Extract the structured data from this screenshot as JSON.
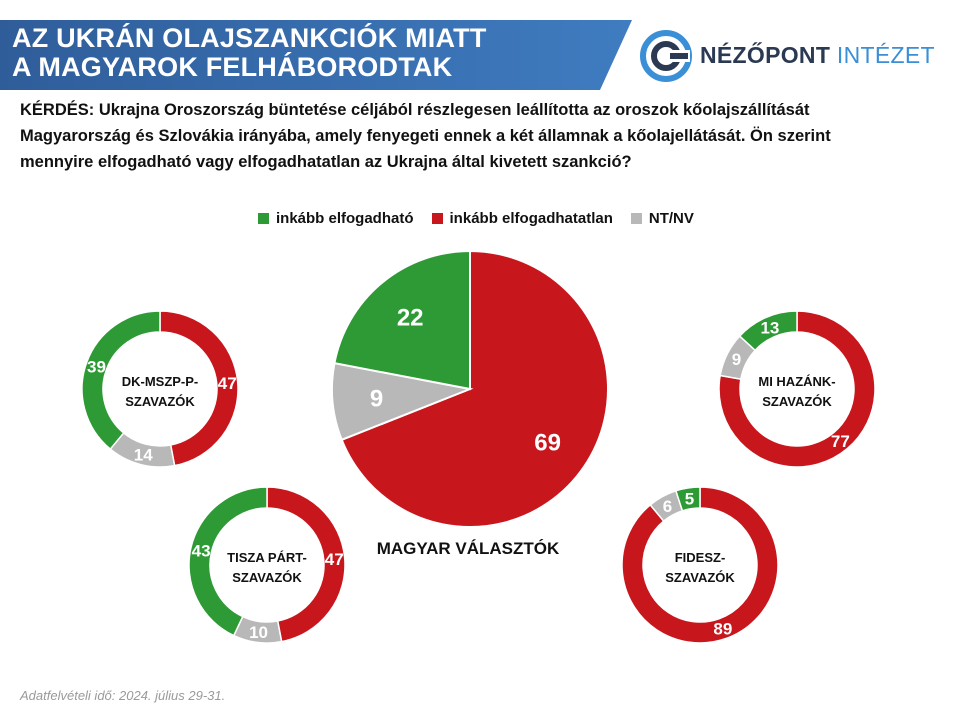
{
  "header": {
    "title_line1": "AZ UKRÁN OLAJSZANKCIÓK MIATT",
    "title_line2": "A MAGYAROK FELHÁBORODTAK",
    "banner_color": "#3a6fb0"
  },
  "logo": {
    "icon": "nezopont-logo-icon",
    "name_part1": "NÉZŐPONT",
    "name_part2": "INTÉZET"
  },
  "question": {
    "line1": "KÉRDÉS: Ukrajna Oroszország büntetése céljából részlegesen leállította az oroszok kőolajszállítását",
    "line2": "Magyarország és Szlovákia irányába, amely fenyegeti ennek a két államnak a kőolajellátását. Ön szerint",
    "line3": "mennyire elfogadható vagy elfogadhatatlan az Ukrajna által kivetett szankció?"
  },
  "legend": [
    {
      "label": "inkább elfogadható",
      "color": "#2e9a35"
    },
    {
      "label": "inkább elfogadhatatlan",
      "color": "#c8161d"
    },
    {
      "label": "NT/NV",
      "color": "#b8b8b8"
    }
  ],
  "chart_data": [
    {
      "type": "pie",
      "title": "MAGYAR VÁLASZTÓK",
      "categories": [
        "inkább elfogadható",
        "inkább elfogadhatatlan",
        "NT/NV"
      ],
      "values": [
        22,
        69,
        9
      ]
    },
    {
      "type": "pie",
      "title_line1": "DK-MSZP-P-",
      "title_line2": "SZAVAZÓK",
      "categories": [
        "inkább elfogadható",
        "inkább elfogadhatatlan",
        "NT/NV"
      ],
      "values": [
        39,
        47,
        14
      ]
    },
    {
      "type": "pie",
      "title_line1": "TISZA PÁRT-",
      "title_line2": "SZAVAZÓK",
      "categories": [
        "inkább elfogadható",
        "inkább elfogadhatatlan",
        "NT/NV"
      ],
      "values": [
        43,
        47,
        10
      ]
    },
    {
      "type": "pie",
      "title_line1": "MI HAZÁNK-",
      "title_line2": "SZAVAZÓK",
      "categories": [
        "inkább elfogadható",
        "inkább elfogadhatatlan",
        "NT/NV"
      ],
      "values": [
        13,
        77,
        9
      ]
    },
    {
      "type": "pie",
      "title_line1": "FIDESZ-",
      "title_line2": "SZAVAZÓK",
      "categories": [
        "inkább elfogadható",
        "inkább elfogadhatatlan",
        "NT/NV"
      ],
      "values": [
        5,
        89,
        6
      ]
    }
  ],
  "footnote": "Adatfelvételi idő: 2024. július 29-31."
}
